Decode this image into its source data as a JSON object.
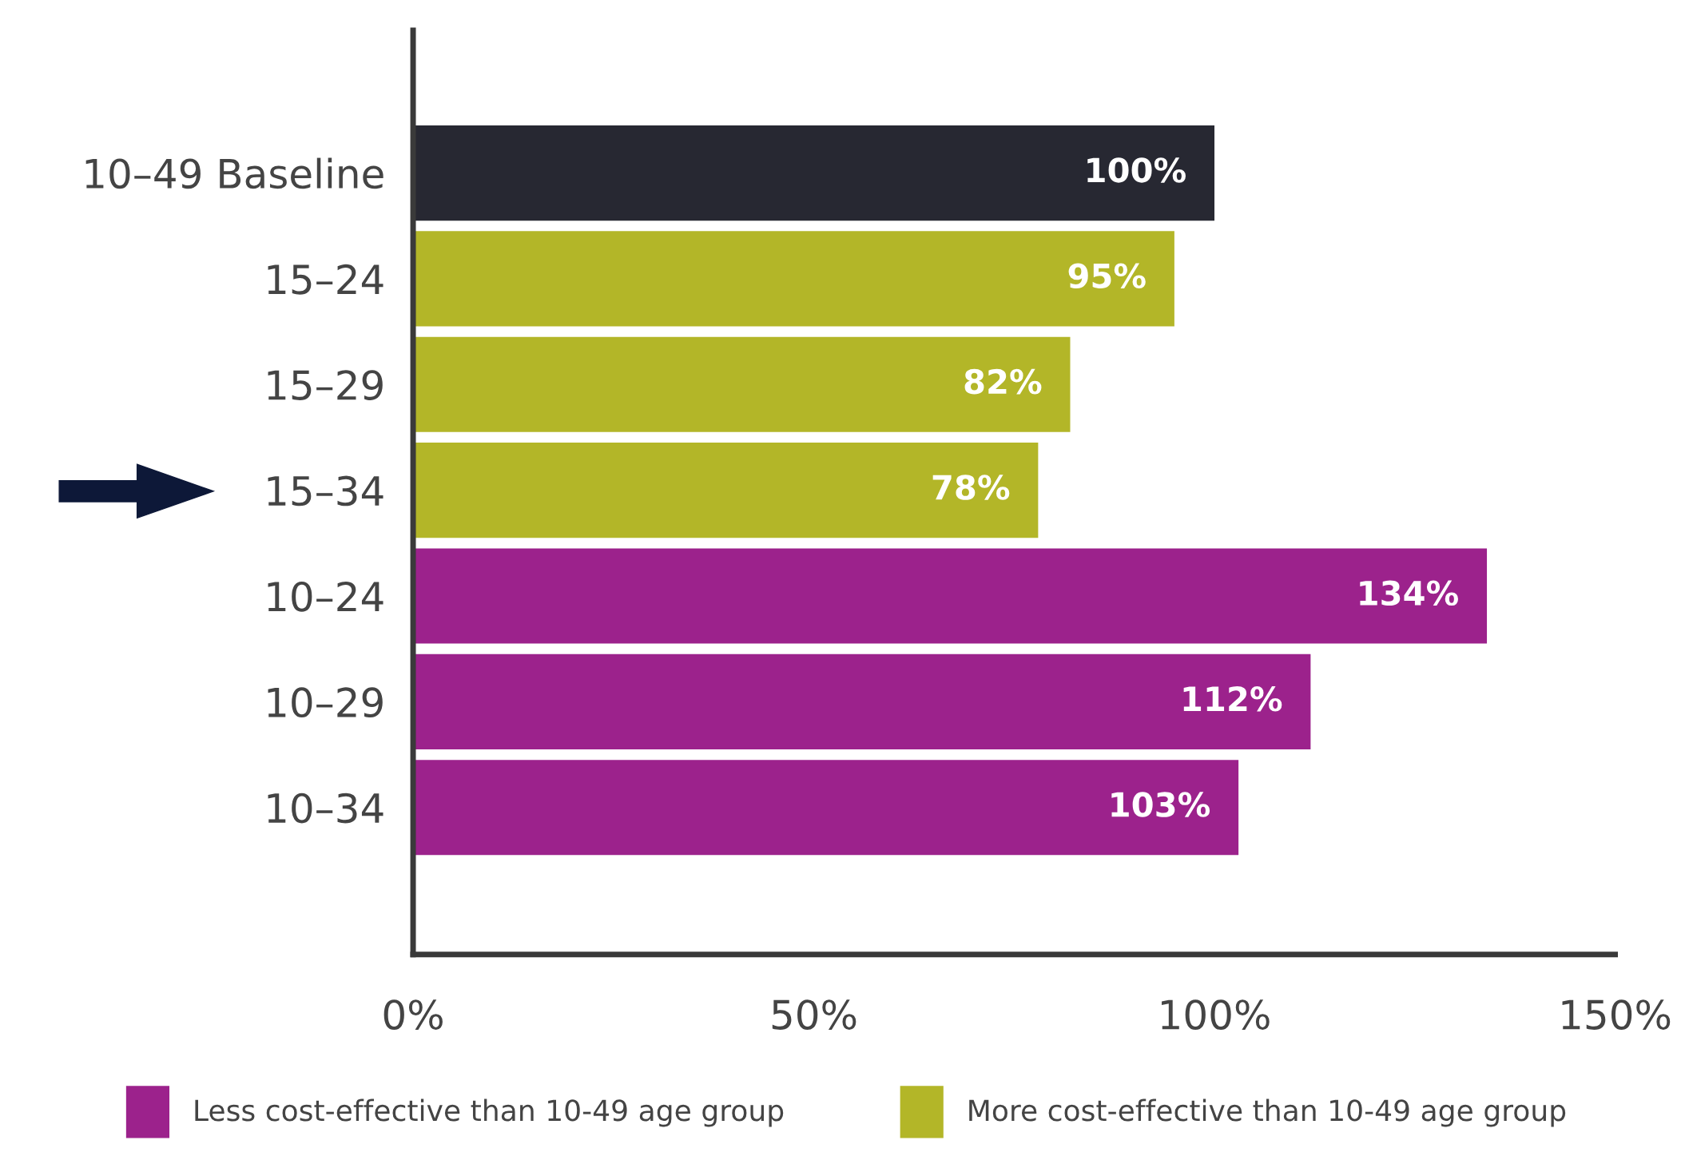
{
  "chart_data": {
    "type": "bar",
    "orientation": "horizontal",
    "categories": [
      "10–49 Baseline",
      "15–24",
      "15–29",
      "15–34",
      "10–24",
      "10–29",
      "10–34"
    ],
    "series": [
      {
        "color": "#272832",
        "values": [
          100,
          null,
          null,
          null,
          null,
          null,
          null
        ],
        "value_labels": [
          "100%",
          null,
          null,
          null,
          null,
          null,
          null
        ]
      },
      {
        "name": "Less cost-effective than 10-49 age group",
        "color": "#9c228c",
        "values": [
          null,
          null,
          null,
          null,
          134,
          112,
          103
        ],
        "value_labels": [
          null,
          null,
          null,
          null,
          "134%",
          "112%",
          "103%"
        ]
      },
      {
        "name": "More cost-effective than 10-49 age group",
        "color": "#b3b628",
        "values": [
          null,
          95,
          82,
          78,
          null,
          null,
          null
        ],
        "value_labels": [
          null,
          "95%",
          "82%",
          "78%",
          null,
          null,
          null
        ]
      }
    ],
    "xlim": [
      0,
      150
    ],
    "xticks": [
      {
        "value": 0,
        "label": "0%"
      },
      {
        "value": 50,
        "label": "50%"
      },
      {
        "value": 100,
        "label": "100%"
      },
      {
        "value": 150,
        "label": "150%"
      }
    ],
    "grid": false,
    "legend": "bottom"
  }
}
